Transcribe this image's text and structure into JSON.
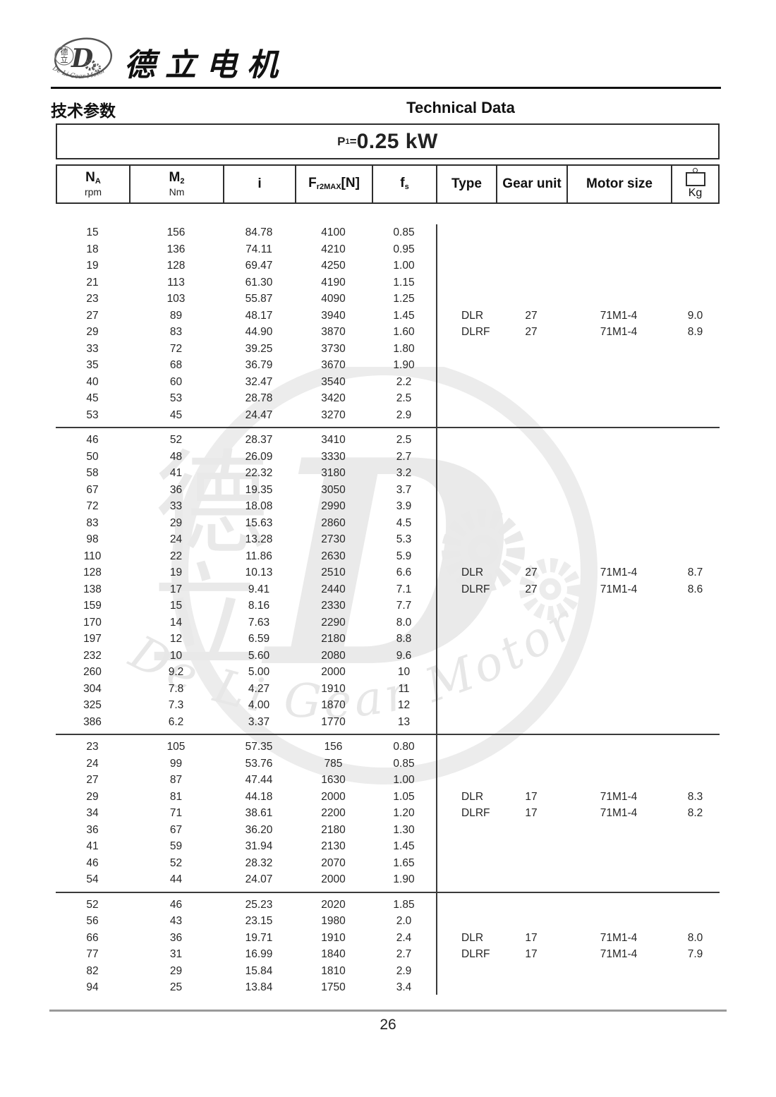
{
  "page": {
    "brand_cn": "德立电机",
    "section_cn": "技术参数",
    "section_en": "Technical Data",
    "power": {
      "symbol": "P",
      "sub": "1",
      "eq": "=",
      "value": "0.25 kW"
    },
    "page_number": "26"
  },
  "logo": {
    "inner_char_top": "德",
    "inner_char_bottom": "立",
    "monogram": "D",
    "ring_text": "De Li Gear Motor"
  },
  "watermark": {
    "char_top": "德",
    "char_bottom": "立",
    "monogram": "D",
    "script_text": "De Li Gear Motor"
  },
  "table": {
    "columns": [
      {
        "label": "N",
        "sub": "A",
        "unit": "rpm"
      },
      {
        "label": "M",
        "sub": "2",
        "unit": "Nm"
      },
      {
        "label": "i"
      },
      {
        "label": "F",
        "sub": "r2MAX",
        "bracket": "[N]"
      },
      {
        "label": "f",
        "sub": "s"
      },
      {
        "label": "Type"
      },
      {
        "label": "Gear unit"
      },
      {
        "label": "Motor size"
      },
      {
        "label": "Kg",
        "icon": "weight-icon"
      }
    ],
    "groups": [
      {
        "rows": [
          [
            "15",
            "156",
            "84.78",
            "4100",
            "0.85"
          ],
          [
            "18",
            "136",
            "74.11",
            "4210",
            "0.95"
          ],
          [
            "19",
            "128",
            "69.47",
            "4250",
            "1.00"
          ],
          [
            "21",
            "113",
            "61.30",
            "4190",
            "1.15"
          ],
          [
            "23",
            "103",
            "55.87",
            "4090",
            "1.25"
          ],
          [
            "27",
            "89",
            "48.17",
            "3940",
            "1.45"
          ],
          [
            "29",
            "83",
            "44.90",
            "3870",
            "1.60"
          ],
          [
            "33",
            "72",
            "39.25",
            "3730",
            "1.80"
          ],
          [
            "35",
            "68",
            "36.79",
            "3670",
            "1.90"
          ],
          [
            "40",
            "60",
            "32.47",
            "3540",
            "2.2"
          ],
          [
            "45",
            "53",
            "28.78",
            "3420",
            "2.5"
          ],
          [
            "53",
            "45",
            "24.47",
            "3270",
            "2.9"
          ]
        ],
        "variants": [
          {
            "row": 5,
            "type": "DLR",
            "gear_unit": "27",
            "motor_size": "71M1-4",
            "kg": "9.0"
          },
          {
            "row": 6,
            "type": "DLRF",
            "gear_unit": "27",
            "motor_size": "71M1-4",
            "kg": "8.9"
          }
        ]
      },
      {
        "rows": [
          [
            "46",
            "52",
            "28.37",
            "3410",
            "2.5"
          ],
          [
            "50",
            "48",
            "26.09",
            "3330",
            "2.7"
          ],
          [
            "58",
            "41",
            "22.32",
            "3180",
            "3.2"
          ],
          [
            "67",
            "36",
            "19.35",
            "3050",
            "3.7"
          ],
          [
            "72",
            "33",
            "18.08",
            "2990",
            "3.9"
          ],
          [
            "83",
            "29",
            "15.63",
            "2860",
            "4.5"
          ],
          [
            "98",
            "24",
            "13.28",
            "2730",
            "5.3"
          ],
          [
            "110",
            "22",
            "11.86",
            "2630",
            "5.9"
          ],
          [
            "128",
            "19",
            "10.13",
            "2510",
            "6.6"
          ],
          [
            "138",
            "17",
            "9.41",
            "2440",
            "7.1"
          ],
          [
            "159",
            "15",
            "8.16",
            "2330",
            "7.7"
          ],
          [
            "170",
            "14",
            "7.63",
            "2290",
            "8.0"
          ],
          [
            "197",
            "12",
            "6.59",
            "2180",
            "8.8"
          ],
          [
            "232",
            "10",
            "5.60",
            "2080",
            "9.6"
          ],
          [
            "260",
            "9.2",
            "5.00",
            "2000",
            "10"
          ],
          [
            "304",
            "7.8",
            "4.27",
            "1910",
            "11"
          ],
          [
            "325",
            "7.3",
            "4.00",
            "1870",
            "12"
          ],
          [
            "386",
            "6.2",
            "3.37",
            "1770",
            "13"
          ]
        ],
        "variants": [
          {
            "row": 8,
            "type": "DLR",
            "gear_unit": "27",
            "motor_size": "71M1-4",
            "kg": "8.7"
          },
          {
            "row": 9,
            "type": "DLRF",
            "gear_unit": "27",
            "motor_size": "71M1-4",
            "kg": "8.6"
          }
        ]
      },
      {
        "rows": [
          [
            "23",
            "105",
            "57.35",
            "156",
            "0.80"
          ],
          [
            "24",
            "99",
            "53.76",
            "785",
            "0.85"
          ],
          [
            "27",
            "87",
            "47.44",
            "1630",
            "1.00"
          ],
          [
            "29",
            "81",
            "44.18",
            "2000",
            "1.05"
          ],
          [
            "34",
            "71",
            "38.61",
            "2200",
            "1.20"
          ],
          [
            "36",
            "67",
            "36.20",
            "2180",
            "1.30"
          ],
          [
            "41",
            "59",
            "31.94",
            "2130",
            "1.45"
          ],
          [
            "46",
            "52",
            "28.32",
            "2070",
            "1.65"
          ],
          [
            "54",
            "44",
            "24.07",
            "2000",
            "1.90"
          ]
        ],
        "variants": [
          {
            "row": 3,
            "type": "DLR",
            "gear_unit": "17",
            "motor_size": "71M1-4",
            "kg": "8.3"
          },
          {
            "row": 4,
            "type": "DLRF",
            "gear_unit": "17",
            "motor_size": "71M1-4",
            "kg": "8.2"
          }
        ]
      },
      {
        "rows": [
          [
            "52",
            "46",
            "25.23",
            "2020",
            "1.85"
          ],
          [
            "56",
            "43",
            "23.15",
            "1980",
            "2.0"
          ],
          [
            "66",
            "36",
            "19.71",
            "1910",
            "2.4"
          ],
          [
            "77",
            "31",
            "16.99",
            "1840",
            "2.7"
          ],
          [
            "82",
            "29",
            "15.84",
            "1810",
            "2.9"
          ],
          [
            "94",
            "25",
            "13.84",
            "1750",
            "3.4"
          ]
        ],
        "variants": [
          {
            "row": 2,
            "type": "DLR",
            "gear_unit": "17",
            "motor_size": "71M1-4",
            "kg": "8.0"
          },
          {
            "row": 3,
            "type": "DLRF",
            "gear_unit": "17",
            "motor_size": "71M1-4",
            "kg": "7.9"
          }
        ]
      }
    ]
  }
}
